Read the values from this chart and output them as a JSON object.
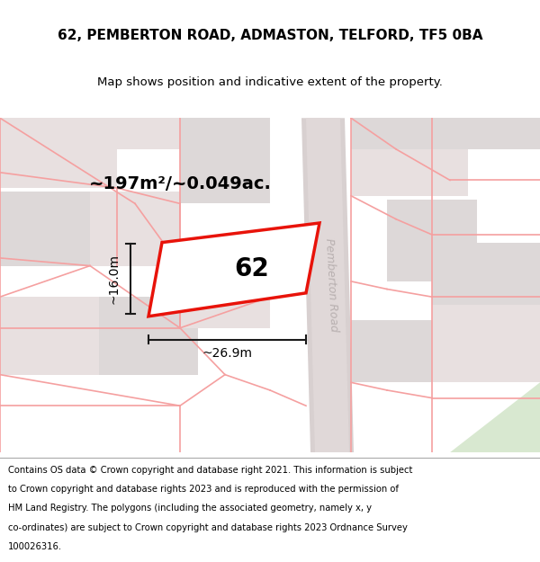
{
  "title_line1": "62, PEMBERTON ROAD, ADMASTON, TELFORD, TF5 0BA",
  "title_line2": "Map shows position and indicative extent of the property.",
  "area_label": "~197m²/~0.049ac.",
  "width_label": "~26.9m",
  "height_label": "~16.0m",
  "plot_number": "62",
  "road_label": "Pemberton Road",
  "map_bg": "#f0eded",
  "plot_fill": "#ffffff",
  "plot_edge_color": "#e8130a",
  "pink_line_color": "#f5a0a0",
  "road_label_color": "#b8b0b0",
  "dimension_color": "#1a1a1a",
  "road_stripe_color": "#d8d0d0",
  "road_inner_color": "#e0d8d8",
  "green_area_color": "#d8e8d0",
  "block_color1": "#e8e0e0",
  "block_color2": "#ddd8d8",
  "footer_lines": [
    "Contains OS data © Crown copyright and database right 2021. This information is subject",
    "to Crown copyright and database rights 2023 and is reproduced with the permission of",
    "HM Land Registry. The polygons (including the associated geometry, namely x, y",
    "co-ordinates) are subject to Crown copyright and database rights 2023 Ordnance Survey",
    "100026316."
  ]
}
